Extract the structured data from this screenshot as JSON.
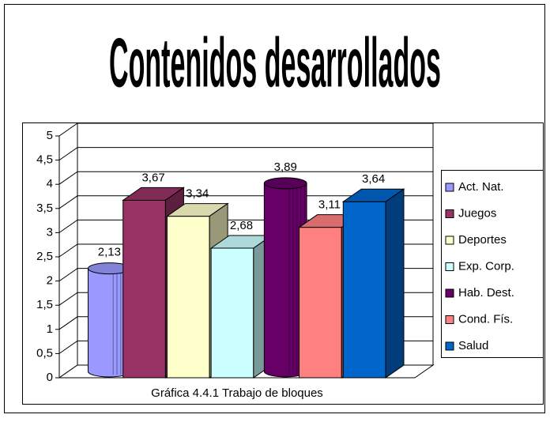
{
  "chart_data": {
    "type": "bar",
    "title": "Contenidos desarrollados",
    "x_label": "Gráfica 4.4.1 Trabajo de bloques",
    "ylim": [
      0,
      5
    ],
    "yticks": [
      0,
      {
        "value": 0.5,
        "label": "0,5"
      },
      1,
      {
        "value": 1.5,
        "label": "1,5"
      },
      2,
      {
        "value": 2.5,
        "label": "2,5"
      },
      3,
      {
        "value": 3.5,
        "label": "3,5"
      },
      4,
      {
        "value": 4.5,
        "label": "4,5"
      },
      5
    ],
    "grid": true,
    "legend": "right",
    "series": [
      {
        "name": "Act. Nat.",
        "color": "#9999FF",
        "shape": "cylinder",
        "values": [
          2.13
        ],
        "value_labels": [
          "2,13"
        ]
      },
      {
        "name": "Juegos",
        "color": "#993366",
        "shape": "box",
        "values": [
          3.67
        ],
        "value_labels": [
          "3,67"
        ]
      },
      {
        "name": "Deportes",
        "color": "#FFFFCC",
        "shape": "box",
        "values": [
          3.34
        ],
        "value_labels": [
          "3,34"
        ]
      },
      {
        "name": "Exp. Corp.",
        "color": "#CCFFFF",
        "shape": "box",
        "values": [
          2.68
        ],
        "value_labels": [
          "2,68"
        ]
      },
      {
        "name": "Hab. Dest.",
        "color": "#660066",
        "shape": "cylinder",
        "values": [
          3.89
        ],
        "value_labels": [
          "3,89"
        ]
      },
      {
        "name": "Cond. Fís.",
        "color": "#FF8080",
        "shape": "box",
        "values": [
          3.11
        ],
        "value_labels": [
          "3,11"
        ]
      },
      {
        "name": "Salud",
        "color": "#0066CC",
        "shape": "box",
        "values": [
          3.64
        ],
        "value_labels": [
          "3,64"
        ]
      }
    ]
  }
}
